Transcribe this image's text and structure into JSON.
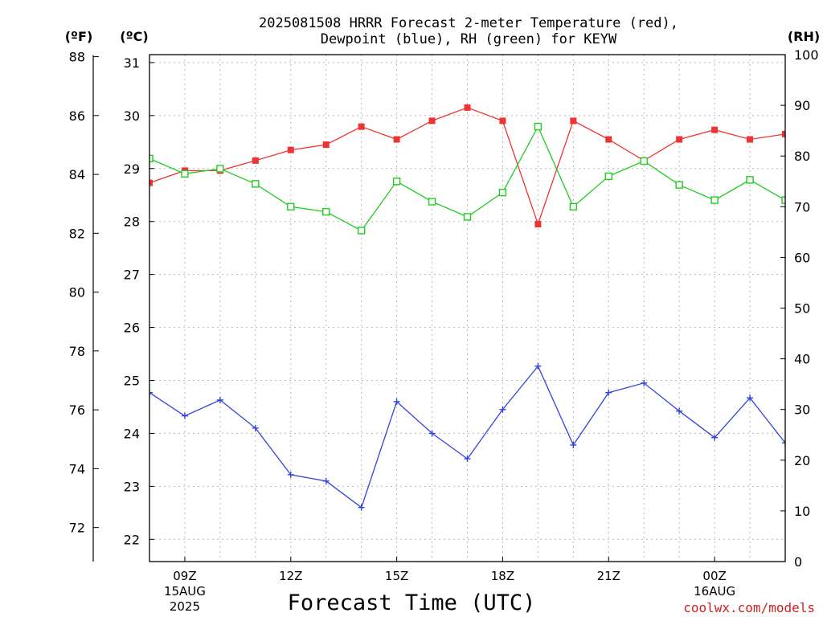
{
  "chart_data": {
    "type": "line",
    "title_line1": "2025081508 HRRR Forecast 2-meter Temperature (red),",
    "title_line2": "Dewpoint (blue), RH (green) for KEYW",
    "xlabel": "Forecast Time (UTC)",
    "credit": "coolwx.com/models",
    "unit_f": "(ºF)",
    "unit_c": "(ºC)",
    "unit_rh": "(RH)",
    "x_hours": [
      8,
      9,
      10,
      11,
      12,
      13,
      14,
      15,
      16,
      17,
      18,
      19,
      20,
      21,
      22,
      23,
      24,
      25,
      26
    ],
    "x_ticks": [
      {
        "hour": 9,
        "line1": "09Z",
        "line2": "15AUG",
        "line3": "2025"
      },
      {
        "hour": 12,
        "line1": "12Z",
        "line2": "",
        "line3": ""
      },
      {
        "hour": 15,
        "line1": "15Z",
        "line2": "",
        "line3": ""
      },
      {
        "hour": 18,
        "line1": "18Z",
        "line2": "",
        "line3": ""
      },
      {
        "hour": 21,
        "line1": "21Z",
        "line2": "",
        "line3": ""
      },
      {
        "hour": 24,
        "line1": "00Z",
        "line2": "16AUG",
        "line3": ""
      }
    ],
    "celsius_ticks": [
      22,
      23,
      24,
      25,
      26,
      27,
      28,
      29,
      30,
      31
    ],
    "fahrenheit_ticks": [
      72,
      74,
      76,
      78,
      80,
      82,
      84,
      86,
      88
    ],
    "rh_ticks": [
      0,
      10,
      20,
      30,
      40,
      50,
      60,
      70,
      80,
      90,
      100
    ],
    "ylim_c": [
      21.58,
      31.15
    ],
    "ylim_rh": [
      0,
      100
    ],
    "series": [
      {
        "name": "Temperature",
        "color": "#ee3333",
        "marker": "filled-square",
        "axis": "celsius",
        "values": [
          28.73,
          28.96,
          28.96,
          29.15,
          29.35,
          29.45,
          29.79,
          29.55,
          29.9,
          30.15,
          29.9,
          27.95,
          29.9,
          29.55,
          29.15,
          29.55,
          29.73,
          29.55,
          29.65
        ]
      },
      {
        "name": "Dewpoint",
        "color": "#3344dd",
        "marker": "plus",
        "axis": "celsius",
        "values": [
          24.77,
          24.33,
          24.63,
          24.1,
          23.22,
          23.1,
          22.6,
          24.6,
          24.0,
          23.52,
          24.45,
          25.27,
          23.78,
          24.77,
          24.95,
          24.42,
          23.92,
          24.67,
          23.82
        ]
      },
      {
        "name": "RH",
        "color": "#22cc22",
        "marker": "open-square",
        "axis": "rh",
        "values": [
          79.5,
          76.5,
          77.5,
          74.5,
          70,
          69,
          65.3,
          75,
          71,
          68,
          72.8,
          85.8,
          70,
          76,
          79,
          74.3,
          71.3,
          75.3,
          71.3
        ]
      }
    ]
  }
}
